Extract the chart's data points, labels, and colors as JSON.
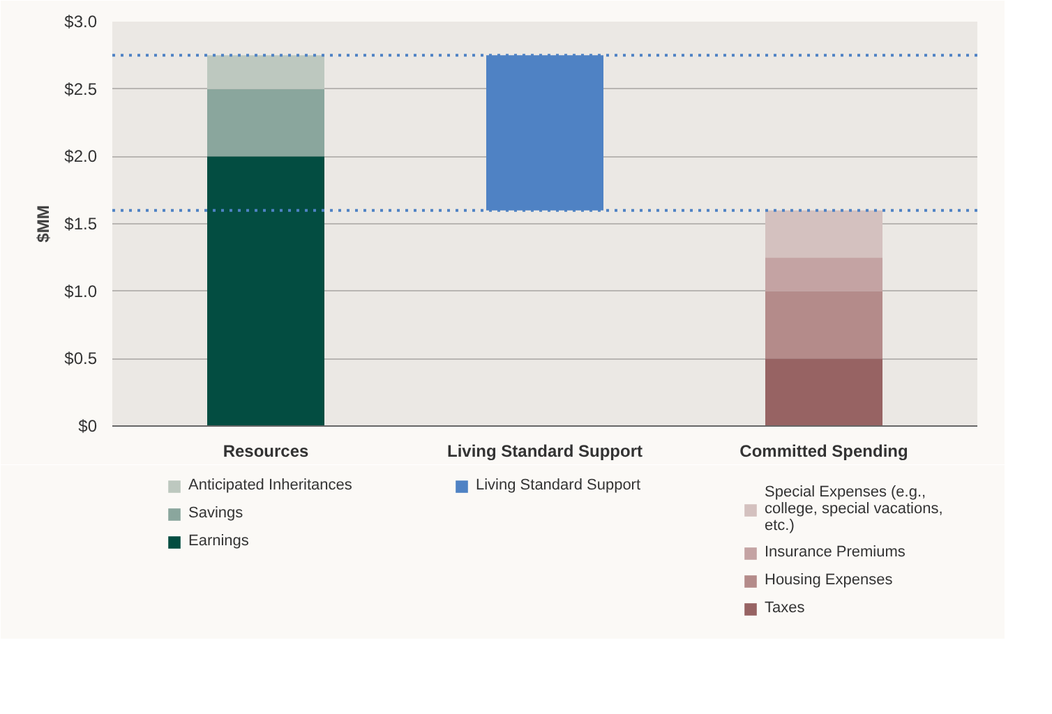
{
  "chart_data": {
    "type": "bar",
    "stacked": true,
    "ylabel": "$MM",
    "categories": [
      "Resources",
      "Living Standard Support",
      "Committed Spending"
    ],
    "series": [
      {
        "name": "Earnings",
        "color": "#034d41",
        "values": [
          2.0,
          null,
          null
        ]
      },
      {
        "name": "Savings",
        "color": "#8aa69d",
        "values": [
          0.5,
          null,
          null
        ]
      },
      {
        "name": "Anticipated Inheritances",
        "color": "#bdc8bf",
        "values": [
          0.25,
          null,
          null
        ]
      },
      {
        "name": "Living Standard Support",
        "color": "#4f82c4",
        "values": [
          null,
          1.15,
          null
        ],
        "base": [
          null,
          1.6,
          null
        ]
      },
      {
        "name": "Taxes",
        "color": "#976363",
        "values": [
          null,
          null,
          0.5
        ]
      },
      {
        "name": "Housing Expenses",
        "color": "#b48b8a",
        "values": [
          null,
          null,
          0.5
        ]
      },
      {
        "name": "Insurance Premiums",
        "color": "#c4a3a3",
        "values": [
          null,
          null,
          0.25
        ]
      },
      {
        "name": "Special Expenses (e.g., college, special vacations, etc.)",
        "color": "#d4c1bf",
        "values": [
          null,
          null,
          0.35
        ]
      }
    ],
    "ylim": [
      0,
      3.0
    ],
    "yticks": [
      {
        "value": 0,
        "label": "$0"
      },
      {
        "value": 0.5,
        "label": "$0.5"
      },
      {
        "value": 1.0,
        "label": "$1.0"
      },
      {
        "value": 1.5,
        "label": "$1.5"
      },
      {
        "value": 2.0,
        "label": "$2.0"
      },
      {
        "value": 2.5,
        "label": "$2.5"
      },
      {
        "value": 3.0,
        "label": "$3.0"
      }
    ],
    "ref_lines": [
      {
        "axis": "y",
        "value": 2.75,
        "color": "#4f82c4",
        "line_style": "dotted"
      },
      {
        "axis": "y",
        "value": 1.6,
        "color": "#4f82c4",
        "line_style": "dotted"
      }
    ],
    "grid": "y",
    "legend": "bottom"
  }
}
